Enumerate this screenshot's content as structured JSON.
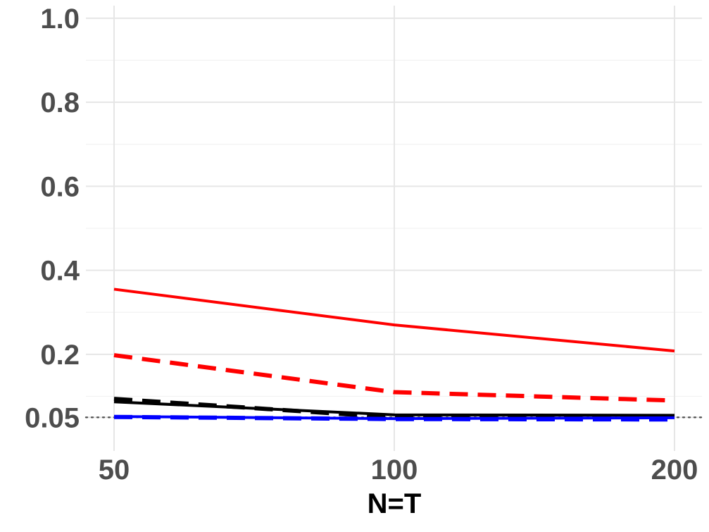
{
  "chart_data": {
    "type": "line",
    "title": "",
    "xlabel": "N=T",
    "ylabel": "",
    "x": [
      50,
      100,
      200
    ],
    "x_scale": "log",
    "x_ticks": [
      "50",
      "100",
      "200"
    ],
    "y_ticks": [
      "0.05",
      "0.2",
      "0.4",
      "0.6",
      "0.8",
      "1.0"
    ],
    "ylim": [
      -0.03,
      1.03
    ],
    "reference_line": {
      "y": 0.05,
      "style": "dotted",
      "color": "#555555"
    },
    "grid": true,
    "legend": "none",
    "series": [
      {
        "values": [
          0.355,
          0.27,
          0.208
        ],
        "color": "#ff0000",
        "style": "solid"
      },
      {
        "values": [
          0.198,
          0.11,
          0.09
        ],
        "color": "#ff0000",
        "style": "dashed"
      },
      {
        "values": [
          0.087,
          0.056,
          0.055
        ],
        "color": "#000000",
        "style": "solid"
      },
      {
        "values": [
          0.094,
          0.05,
          0.053
        ],
        "color": "#000000",
        "style": "dashed"
      },
      {
        "values": [
          0.052,
          0.047,
          0.049
        ],
        "color": "#0000ff",
        "style": "solid"
      },
      {
        "values": [
          0.051,
          0.046,
          0.045
        ],
        "color": "#0000ff",
        "style": "dashed"
      }
    ]
  }
}
